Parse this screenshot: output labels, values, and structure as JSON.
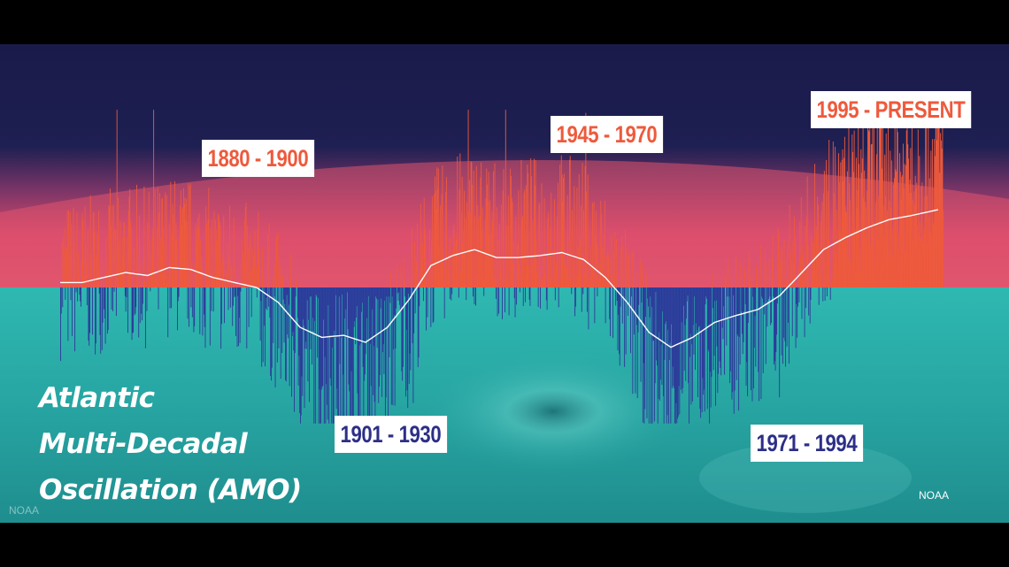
{
  "chart_data": {
    "type": "bar",
    "title_lines": [
      "Atlantic",
      "Multi-Decadal",
      "Oscillation (AMO)"
    ],
    "xlim": [
      1856,
      2018
    ],
    "ylim": [
      -1,
      1
    ],
    "grid": false,
    "colors": {
      "warm_bars": "#ee5a3c",
      "cool_bars": "#2d3a9a",
      "smoothed_line": "#ffffff",
      "sky_top": "#1a1a4a",
      "sky_glow": "#e2486a",
      "ocean": "#25a6a3",
      "label_bg": "#ffffff",
      "warm_text": "#ee5a3c",
      "cool_text": "#2c2f86"
    },
    "smoothed": {
      "x": [
        1856,
        1860,
        1864,
        1868,
        1872,
        1876,
        1880,
        1884,
        1888,
        1892,
        1896,
        1900,
        1904,
        1908,
        1912,
        1916,
        1920,
        1924,
        1928,
        1932,
        1936,
        1940,
        1944,
        1948,
        1952,
        1956,
        1960,
        1964,
        1968,
        1972,
        1976,
        1980,
        1984,
        1988,
        1992,
        1996,
        2000,
        2004,
        2008,
        2012,
        2017
      ],
      "y": [
        0.05,
        0.05,
        0.1,
        0.15,
        0.12,
        0.2,
        0.18,
        0.1,
        0.05,
        0.0,
        -0.15,
        -0.4,
        -0.5,
        -0.48,
        -0.55,
        -0.4,
        -0.12,
        0.22,
        0.32,
        0.38,
        0.3,
        0.3,
        0.32,
        0.35,
        0.28,
        0.1,
        -0.15,
        -0.45,
        -0.6,
        -0.5,
        -0.35,
        -0.28,
        -0.22,
        -0.08,
        0.15,
        0.38,
        0.5,
        0.6,
        0.68,
        0.72,
        0.78
      ]
    },
    "periods": [
      {
        "label": "1880 - 1900",
        "phase": "warm"
      },
      {
        "label": "1901 - 1930",
        "phase": "cool"
      },
      {
        "label": "1945 - 1970",
        "phase": "warm"
      },
      {
        "label": "1971 - 1994",
        "phase": "cool"
      },
      {
        "label": "1995 - PRESENT",
        "phase": "warm"
      }
    ]
  },
  "credits": {
    "left": "NOAA",
    "right": "NOAA"
  }
}
